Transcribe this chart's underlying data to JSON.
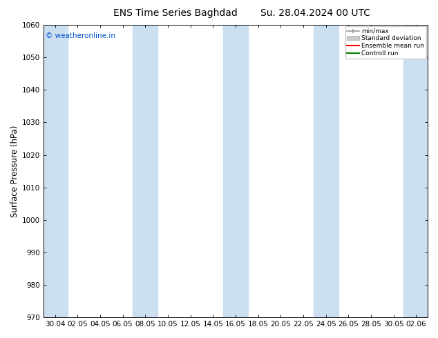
{
  "title_left": "ENS Time Series Baghdad",
  "title_right": "Su. 28.04.2024 00 UTC",
  "ylabel": "Surface Pressure (hPa)",
  "watermark": "© weatheronline.in",
  "watermark_color": "#0055cc",
  "ylim": [
    970,
    1060
  ],
  "yticks": [
    970,
    980,
    990,
    1000,
    1010,
    1020,
    1030,
    1040,
    1050,
    1060
  ],
  "xtick_labels": [
    "30.04",
    "02.05",
    "04.05",
    "06.05",
    "08.05",
    "10.05",
    "12.05",
    "14.05",
    "16.05",
    "18.05",
    "20.05",
    "22.05",
    "24.05",
    "26.05",
    "28.05",
    "30.05",
    "02.06"
  ],
  "bg_color": "#ffffff",
  "band_color": "#ccdff0",
  "legend_labels": [
    "min/max",
    "Standard deviation",
    "Ensemble mean run",
    "Controll run"
  ],
  "legend_colors_line": [
    "#999999",
    "#bbbbbb",
    "#ff0000",
    "#008000"
  ],
  "title_fontsize": 10,
  "tick_fontsize": 7.5,
  "ylabel_fontsize": 8.5
}
